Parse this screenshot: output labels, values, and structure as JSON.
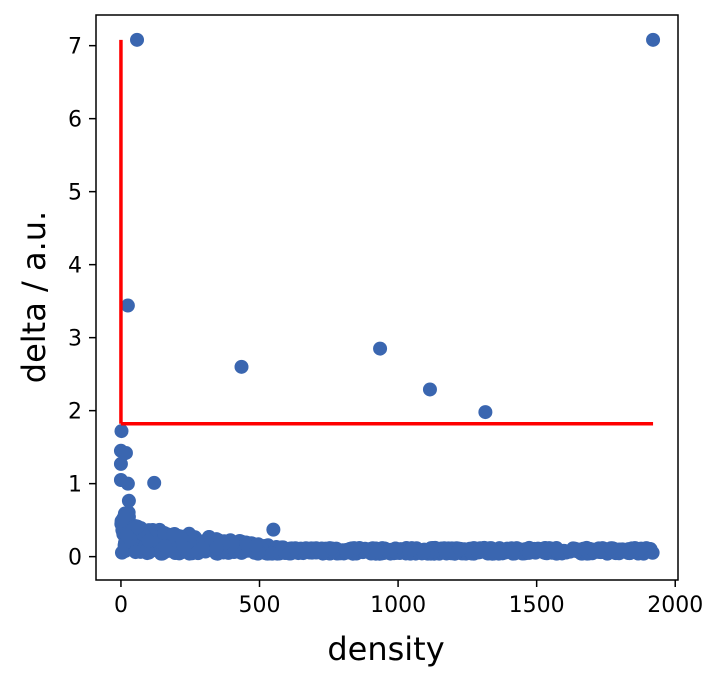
{
  "chart_data": {
    "type": "scatter",
    "xlabel": "density",
    "ylabel": "delta / a.u.",
    "xlim": [
      -90,
      2010
    ],
    "ylim": [
      -0.32,
      7.42
    ],
    "x_ticks": [
      0,
      500,
      1000,
      1500,
      2000
    ],
    "y_ticks": [
      0,
      1,
      2,
      3,
      4,
      5,
      6,
      7
    ],
    "grid": false,
    "point_color": "#3a66b0",
    "threshold_color": "#ff0000",
    "thresholds": {
      "density": 0,
      "delta": 1.82,
      "delta_max": 7.08,
      "density_max": 1920
    },
    "outliers": [
      {
        "x": 58,
        "y": 7.08
      },
      {
        "x": 1920,
        "y": 7.08
      },
      {
        "x": 25,
        "y": 3.44
      },
      {
        "x": 435,
        "y": 2.6
      },
      {
        "x": 935,
        "y": 2.85
      },
      {
        "x": 1115,
        "y": 2.29
      },
      {
        "x": 1315,
        "y": 1.98
      },
      {
        "x": 120,
        "y": 1.01
      },
      {
        "x": 2,
        "y": 1.72
      },
      {
        "x": 0,
        "y": 1.45
      },
      {
        "x": 0,
        "y": 1.27
      },
      {
        "x": 18,
        "y": 1.42
      },
      {
        "x": 25,
        "y": 1.0
      },
      {
        "x": 0,
        "y": 1.05
      },
      {
        "x": 550,
        "y": 0.37
      }
    ],
    "bulk_band": {
      "density_range": [
        0,
        1920
      ],
      "delta_low": 0.04,
      "delta_high_at_start": 0.45,
      "delta_high_at_end": 0.12,
      "count": 900
    }
  }
}
